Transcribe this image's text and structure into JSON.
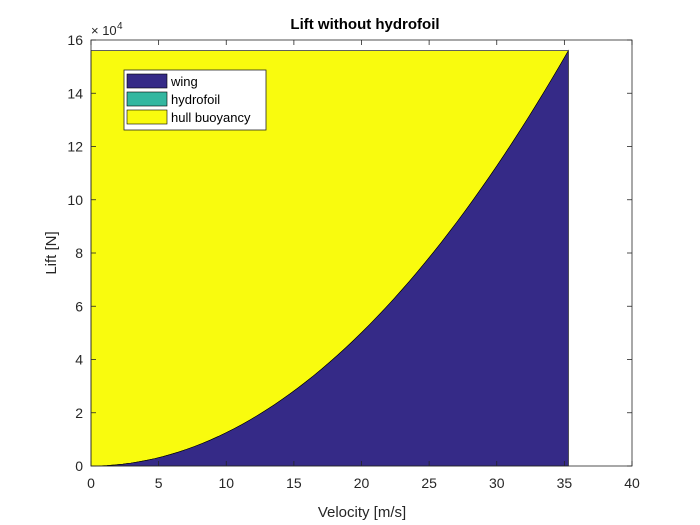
{
  "chart_data": {
    "type": "area",
    "stacked": true,
    "title": "Lift without hydrofoil",
    "xlabel": "Velocity [m/s]",
    "ylabel": "Lift [N]",
    "xlim": [
      0,
      40
    ],
    "ylim": [
      0,
      16
    ],
    "y_multiplier_label": "× 10",
    "y_multiplier_exponent": "4",
    "xticks": [
      "0",
      "5",
      "10",
      "15",
      "20",
      "25",
      "30",
      "35",
      "40"
    ],
    "yticks": [
      "0",
      "2",
      "4",
      "6",
      "8",
      "10",
      "12",
      "14",
      "16"
    ],
    "x": [
      0,
      5,
      10,
      15,
      20,
      25,
      30,
      35.3
    ],
    "total": 15.6,
    "series": [
      {
        "name": "wing",
        "color": "#352A87",
        "values": [
          0,
          0.31,
          1.25,
          2.82,
          5.01,
          7.83,
          11.27,
          15.6
        ]
      },
      {
        "name": "hydrofoil",
        "color": "#33B7A0",
        "values": [
          0,
          0,
          0,
          0,
          0,
          0,
          0,
          0
        ]
      },
      {
        "name": "hull buoyancy",
        "color": "#F9FB0E",
        "values": [
          15.6,
          15.29,
          14.35,
          12.78,
          10.59,
          7.77,
          4.33,
          0
        ]
      }
    ],
    "legend_position": "top-left",
    "grid": false
  }
}
